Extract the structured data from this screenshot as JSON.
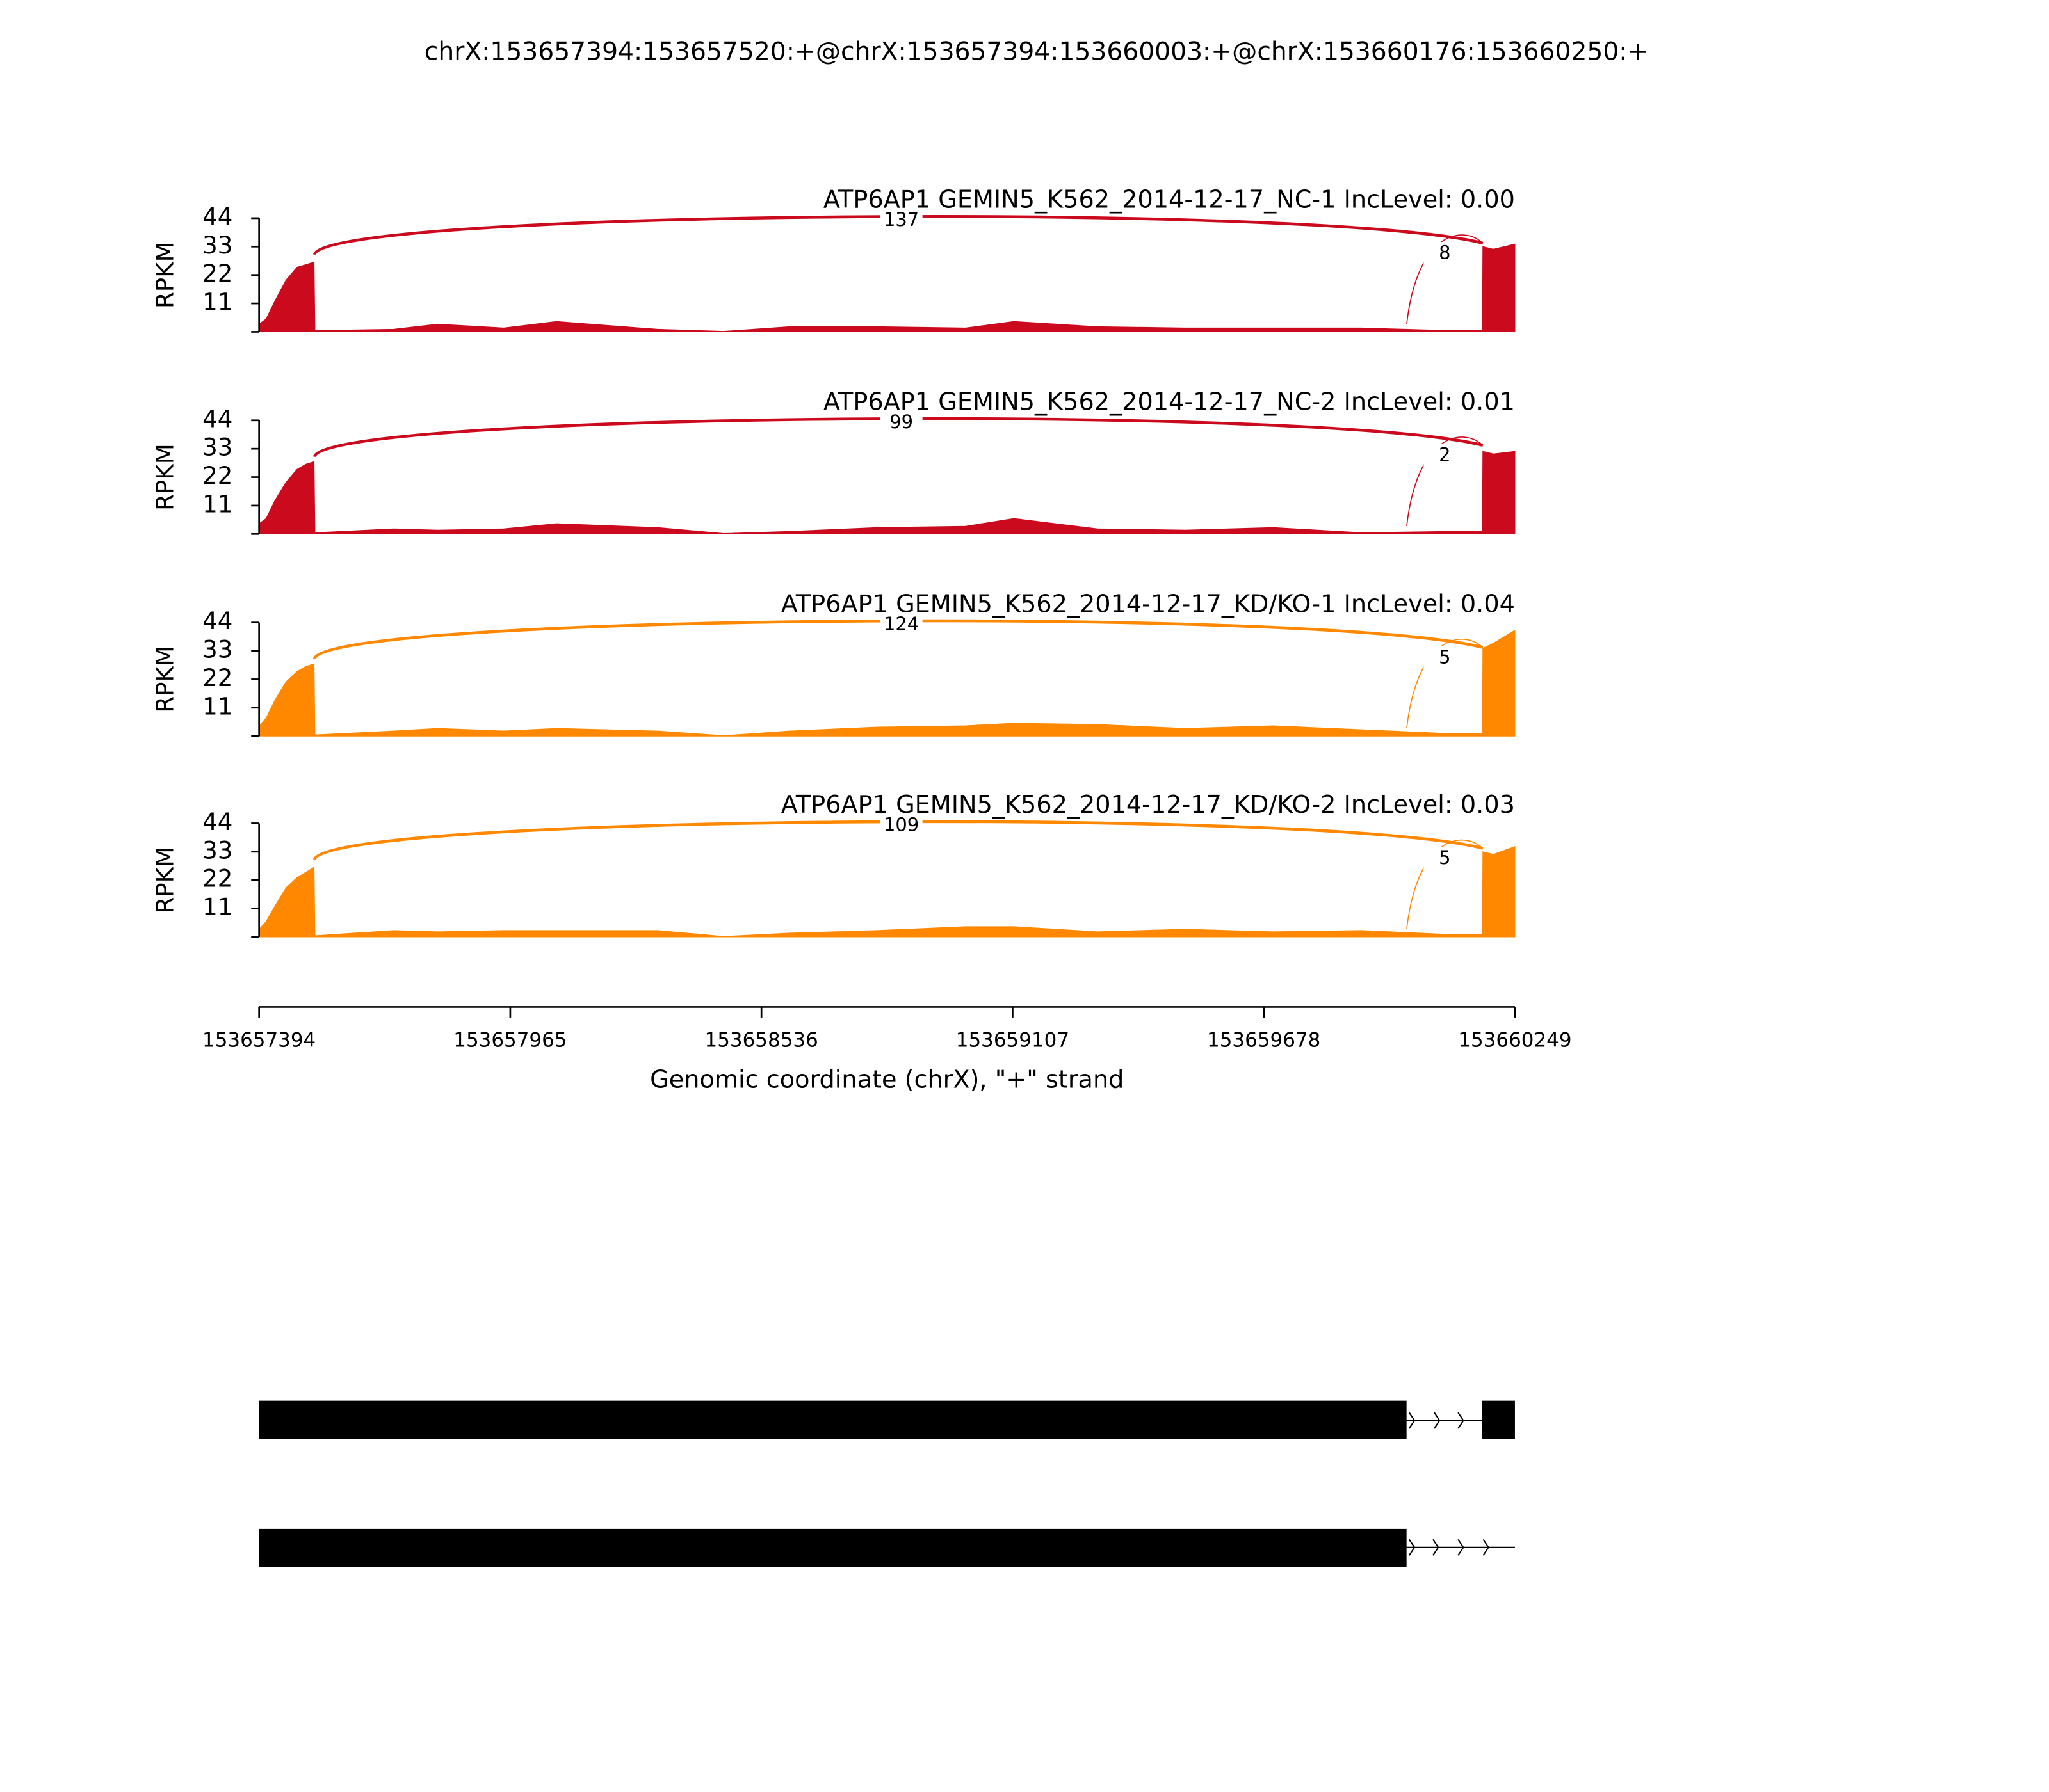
{
  "title": "chrX:153657394:153657520:+@chrX:153657394:153660003:+@chrX:153660176:153660250:+",
  "genomic_axis": {
    "xlim": [
      153657394,
      153660249
    ],
    "xticks": [
      153657394,
      153657965,
      153658536,
      153659107,
      153659678,
      153660249
    ],
    "xlabel": "Genomic coordinate (chrX), \"+\" strand"
  },
  "chart_data": [
    {
      "type": "area",
      "title": "ATP6AP1 GEMIN5_K562_2014-12-17_NC-1 IncLevel: 0.00",
      "color": "#cc0a1e",
      "ylabel": "RPKM",
      "ylim": [
        0,
        44
      ],
      "yticks": [
        11,
        22,
        33,
        44
      ],
      "xlim": [
        153657394,
        153660249
      ],
      "x": [
        153657394,
        153657410,
        153657430,
        153657455,
        153657480,
        153657500,
        153657519,
        153657521,
        153657700,
        153657800,
        153657950,
        153658070,
        153658300,
        153658450,
        153658600,
        153658800,
        153659000,
        153659110,
        153659300,
        153659500,
        153659700,
        153659900,
        153660100,
        153660175,
        153660176,
        153660200,
        153660249
      ],
      "values": [
        3,
        5,
        12,
        20,
        25,
        26,
        27,
        0.5,
        1,
        3,
        1.5,
        4,
        1,
        0.2,
        2,
        2,
        1.5,
        4,
        2,
        1.5,
        1.5,
        1.5,
        0.5,
        0.5,
        33,
        32,
        34
      ],
      "junctions": [
        {
          "start": 153657520,
          "end": 153660176,
          "count": 137
        },
        {
          "start": 153660003,
          "end": 153660176,
          "count": 8
        }
      ]
    },
    {
      "type": "area",
      "title": "ATP6AP1 GEMIN5_K562_2014-12-17_NC-2 IncLevel: 0.01",
      "color": "#cc0a1e",
      "ylabel": "RPKM",
      "ylim": [
        0,
        44
      ],
      "yticks": [
        11,
        22,
        33,
        44
      ],
      "xlim": [
        153657394,
        153660249
      ],
      "x": [
        153657394,
        153657410,
        153657430,
        153657455,
        153657480,
        153657500,
        153657519,
        153657521,
        153657700,
        153657800,
        153657950,
        153658070,
        153658300,
        153658450,
        153658600,
        153658800,
        153659000,
        153659110,
        153659300,
        153659500,
        153659700,
        153659900,
        153660100,
        153660175,
        153660176,
        153660200,
        153660249
      ],
      "values": [
        4,
        6,
        13,
        20,
        25,
        27,
        28,
        0.5,
        2,
        1.5,
        2,
        4,
        2.5,
        0.2,
        1,
        2.5,
        3,
        6,
        2,
        1.5,
        2.5,
        0.5,
        1,
        1,
        32,
        31,
        32
      ],
      "junctions": [
        {
          "start": 153657520,
          "end": 153660176,
          "count": 99
        },
        {
          "start": 153660003,
          "end": 153660176,
          "count": 2
        }
      ]
    },
    {
      "type": "area",
      "title": "ATP6AP1 GEMIN5_K562_2014-12-17_KD/KO-1 IncLevel: 0.04",
      "color": "#ff8800",
      "ylabel": "RPKM",
      "ylim": [
        0,
        44
      ],
      "yticks": [
        11,
        22,
        33,
        44
      ],
      "xlim": [
        153657394,
        153660249
      ],
      "x": [
        153657394,
        153657410,
        153657430,
        153657455,
        153657480,
        153657500,
        153657519,
        153657521,
        153657700,
        153657800,
        153657950,
        153658070,
        153658300,
        153658450,
        153658600,
        153658800,
        153659000,
        153659110,
        153659300,
        153659500,
        153659700,
        153659900,
        153660100,
        153660175,
        153660176,
        153660200,
        153660249
      ],
      "values": [
        4,
        7,
        14,
        21,
        25,
        27,
        28,
        0.5,
        2,
        3,
        2,
        3,
        2,
        0.2,
        2,
        3.5,
        4,
        5,
        4.5,
        3,
        4,
        2.5,
        1,
        1,
        34,
        36,
        41
      ],
      "junctions": [
        {
          "start": 153657520,
          "end": 153660176,
          "count": 124
        },
        {
          "start": 153660003,
          "end": 153660176,
          "count": 5
        }
      ]
    },
    {
      "type": "area",
      "title": "ATP6AP1 GEMIN5_K562_2014-12-17_KD/KO-2 IncLevel: 0.03",
      "color": "#ff8800",
      "ylabel": "RPKM",
      "ylim": [
        0,
        44
      ],
      "yticks": [
        11,
        22,
        33,
        44
      ],
      "xlim": [
        153657394,
        153660249
      ],
      "x": [
        153657394,
        153657410,
        153657430,
        153657455,
        153657480,
        153657500,
        153657519,
        153657521,
        153657700,
        153657800,
        153657950,
        153658070,
        153658300,
        153658450,
        153658600,
        153658800,
        153659000,
        153659110,
        153659300,
        153659500,
        153659700,
        153659900,
        153660100,
        153660175,
        153660176,
        153660200,
        153660249
      ],
      "values": [
        3,
        6,
        12,
        19,
        23,
        25,
        27,
        0.5,
        2.5,
        2,
        2.5,
        2.5,
        2.5,
        0.2,
        1.5,
        2.5,
        4,
        4,
        2,
        3,
        2,
        2.5,
        1,
        1,
        33,
        32,
        35
      ],
      "junctions": [
        {
          "start": 153657520,
          "end": 153660176,
          "count": 109
        },
        {
          "start": 153660003,
          "end": 153660176,
          "count": 5
        }
      ]
    }
  ]
}
